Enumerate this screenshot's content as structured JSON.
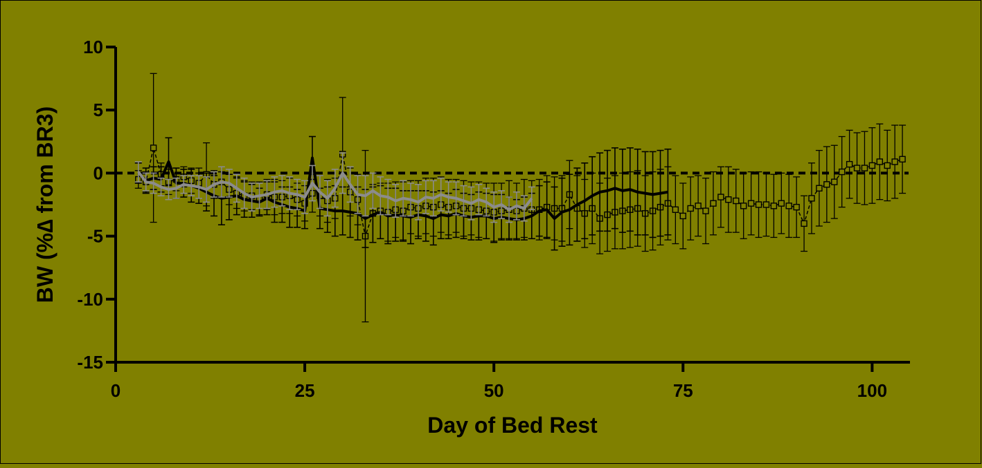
{
  "chart_data": {
    "type": "line",
    "xlabel": "Day of Bed Rest",
    "ylabel": "BW (%∆ from BR3)",
    "xlim": [
      0,
      105
    ],
    "ylim": [
      -15,
      10
    ],
    "x_ticks": [
      "0",
      "25",
      "50",
      "75",
      "100"
    ],
    "y_ticks": [
      "10",
      "5",
      "0",
      "-5",
      "-10",
      "-15"
    ],
    "grid": false,
    "legend": "none",
    "reference_line": {
      "y": 0,
      "style": "dashed"
    },
    "colors": {
      "background": "#808000",
      "series_black": "#000000",
      "series_gray": "#8c8c8c",
      "series_squares": "#000000"
    },
    "series": [
      {
        "x": [
          3,
          4,
          5,
          6,
          7,
          8,
          9,
          10,
          11,
          12,
          13,
          14,
          15,
          16,
          17,
          18,
          19,
          20,
          21,
          22,
          23,
          24,
          25,
          26,
          27,
          28,
          29,
          30,
          31,
          32,
          33,
          34,
          35,
          36,
          37,
          38,
          39,
          40,
          41,
          42,
          43,
          44,
          45,
          46,
          47,
          48,
          49,
          50,
          51,
          52,
          53,
          54,
          55,
          56,
          57,
          58,
          59,
          60,
          61,
          62,
          63,
          64,
          65,
          66,
          67,
          68,
          69,
          70,
          71,
          72,
          73
        ],
        "y": [
          0.0,
          -0.6,
          -0.4,
          -0.5,
          0.9,
          -0.8,
          -0.8,
          -1.0,
          -1.2,
          -1.5,
          -1.8,
          -2.0,
          -1.9,
          -1.8,
          -2.1,
          -2.2,
          -2.3,
          -2.0,
          -2.3,
          -2.5,
          -2.7,
          -2.8,
          -3.0,
          1.2,
          -2.8,
          -2.9,
          -3.0,
          -3.0,
          -3.1,
          -3.2,
          -3.6,
          -3.3,
          -3.1,
          -3.4,
          -3.3,
          -3.4,
          -3.5,
          -3.3,
          -3.4,
          -3.6,
          -3.3,
          -3.4,
          -3.2,
          -3.4,
          -3.5,
          -3.4,
          -3.4,
          -3.6,
          -3.5,
          -3.6,
          -3.7,
          -3.6,
          -3.4,
          -3.0,
          -2.9,
          -3.6,
          -3.1,
          -2.9,
          -2.5,
          -2.2,
          -1.8,
          -1.5,
          -1.4,
          -1.2,
          -1.4,
          -1.3,
          -1.5,
          -1.6,
          -1.7,
          -1.6,
          -1.5
        ],
        "err": [
          0.8,
          1.0,
          0.9,
          1.0,
          1.9,
          1.2,
          1.1,
          1.3,
          1.2,
          1.5,
          1.6,
          2.1,
          1.8,
          1.5,
          1.4,
          1.3,
          1.1,
          1.3,
          1.6,
          1.4,
          1.6,
          1.5,
          1.4,
          1.7,
          1.6,
          1.8,
          2.0,
          1.9,
          2.0,
          2.1,
          2.3,
          2.2,
          2.1,
          2.2,
          2.1,
          2.0,
          2.1,
          1.9,
          2.0,
          2.1,
          1.9,
          1.8,
          1.9,
          1.8,
          1.8,
          1.9,
          1.8,
          1.9,
          1.8,
          1.7,
          1.6,
          1.7,
          1.8,
          2.0,
          2.2,
          2.5,
          2.7,
          2.8,
          2.9,
          3.0,
          3.1,
          3.1,
          3.2,
          3.2,
          3.3,
          3.3,
          3.4,
          3.3,
          3.4,
          3.4,
          3.4
        ]
      },
      {
        "x": [
          3,
          4,
          5,
          6,
          7,
          8,
          9,
          10,
          11,
          12,
          13,
          14,
          15,
          16,
          17,
          18,
          19,
          20,
          21,
          22,
          23,
          24,
          25,
          26,
          27,
          28,
          29,
          30,
          31,
          32,
          33,
          34,
          35,
          36,
          37,
          38,
          39,
          40,
          41,
          42,
          43,
          44,
          45,
          46,
          47,
          48,
          49,
          50,
          51,
          52,
          53,
          54,
          55
        ],
        "y": [
          0.1,
          -0.7,
          -0.8,
          -1.1,
          -1.3,
          -1.2,
          -0.9,
          -1.0,
          -1.1,
          -1.3,
          -0.9,
          -0.7,
          -0.8,
          -1.2,
          -1.6,
          -1.9,
          -1.8,
          -1.7,
          -1.5,
          -1.4,
          -1.6,
          -1.7,
          -1.9,
          -0.8,
          -1.5,
          -2.0,
          -1.2,
          0.0,
          -0.9,
          -1.7,
          -1.8,
          -1.4,
          -1.8,
          -1.9,
          -2.2,
          -2.0,
          -2.1,
          -2.3,
          -1.9,
          -2.0,
          -1.7,
          -1.9,
          -2.0,
          -2.2,
          -2.4,
          -2.1,
          -2.3,
          -2.7,
          -2.5,
          -2.9,
          -2.6,
          -2.8,
          -2.0
        ],
        "err": [
          0.8,
          0.7,
          0.8,
          0.7,
          0.8,
          0.8,
          0.7,
          0.8,
          0.9,
          1.0,
          1.0,
          1.2,
          1.1,
          1.1,
          1.2,
          1.1,
          1.0,
          1.1,
          1.2,
          1.2,
          1.3,
          1.2,
          1.3,
          1.4,
          1.3,
          1.4,
          1.5,
          1.6,
          1.4,
          1.5,
          1.6,
          1.4,
          1.5,
          1.4,
          1.3,
          1.4,
          1.3,
          1.4,
          1.3,
          1.4,
          1.3,
          1.2,
          1.3,
          1.2,
          1.3,
          1.2,
          1.1,
          1.2,
          1.1,
          1.0,
          1.1,
          1.0,
          0.9
        ]
      },
      {
        "x": [
          3,
          4,
          5,
          6,
          7,
          8,
          9,
          10,
          11,
          12,
          13,
          14,
          15,
          16,
          17,
          18,
          19,
          20,
          21,
          22,
          23,
          24,
          25,
          26,
          27,
          28,
          29,
          30,
          31,
          32,
          33,
          34,
          35,
          36,
          37,
          38,
          39,
          40,
          41,
          42,
          43,
          44,
          45,
          46,
          47,
          48,
          49,
          50,
          51,
          52,
          53,
          54,
          55,
          56,
          57,
          58,
          59,
          60,
          61,
          62,
          63,
          64,
          65,
          66,
          67,
          68,
          69,
          70,
          71,
          72,
          73,
          74,
          75,
          76,
          77,
          78,
          79,
          80,
          81,
          82,
          83,
          84,
          85,
          86,
          87,
          88,
          89,
          90,
          91,
          92,
          93,
          94,
          95,
          96,
          97,
          98,
          99,
          100,
          101,
          102,
          103,
          104
        ],
        "y": [
          -0.5,
          -0.7,
          2.0,
          -0.1,
          -0.7,
          -0.5,
          -0.3,
          -0.6,
          -0.8,
          -0.1,
          -0.9,
          -0.7,
          -1.3,
          -1.6,
          -1.8,
          -1.8,
          -2.0,
          -1.7,
          -1.9,
          -1.9,
          -1.8,
          -2.1,
          -2.4,
          -1.6,
          -1.8,
          -2.2,
          -2.0,
          1.5,
          -1.5,
          -2.1,
          -5.0,
          -3.2,
          -3.0,
          -3.1,
          -2.9,
          -3.0,
          -2.7,
          -2.8,
          -2.6,
          -2.7,
          -2.5,
          -2.7,
          -2.6,
          -2.8,
          -2.8,
          -2.9,
          -3.0,
          -3.1,
          -3.0,
          -2.9,
          -3.0,
          -2.8,
          -2.9,
          -2.9,
          -2.7,
          -2.8,
          -2.8,
          -1.7,
          -2.8,
          -3.2,
          -2.8,
          -3.6,
          -3.3,
          -3.1,
          -3.0,
          -2.9,
          -2.8,
          -3.2,
          -3.0,
          -2.7,
          -2.4,
          -2.9,
          -3.4,
          -2.8,
          -2.6,
          -3.0,
          -2.4,
          -1.9,
          -2.1,
          -2.2,
          -2.6,
          -2.4,
          -2.5,
          -2.5,
          -2.6,
          -2.4,
          -2.6,
          -2.7,
          -4.0,
          -2.0,
          -1.2,
          -0.9,
          -0.7,
          0.1,
          0.7,
          0.4,
          0.4,
          0.6,
          0.9,
          0.6,
          0.9,
          1.1
        ],
        "err": [
          0.7,
          0.8,
          5.9,
          0.9,
          1.0,
          0.9,
          0.8,
          1.0,
          1.2,
          2.5,
          1.1,
          1.2,
          1.2,
          1.2,
          1.2,
          1.1,
          1.3,
          1.2,
          1.4,
          1.3,
          1.4,
          1.3,
          1.4,
          1.5,
          1.6,
          1.7,
          1.6,
          4.5,
          1.9,
          2.0,
          6.8,
          2.3,
          2.2,
          2.3,
          2.2,
          2.3,
          2.1,
          2.2,
          2.2,
          2.3,
          2.2,
          2.2,
          2.1,
          2.2,
          2.1,
          2.2,
          2.2,
          2.3,
          2.2,
          2.3,
          2.2,
          2.3,
          2.3,
          2.4,
          2.5,
          2.5,
          2.6,
          2.7,
          2.6,
          2.7,
          2.8,
          2.8,
          2.9,
          2.9,
          3.0,
          3.0,
          3.0,
          3.0,
          3.1,
          3.0,
          2.9,
          2.7,
          2.6,
          2.5,
          2.4,
          2.6,
          2.5,
          2.4,
          2.6,
          2.5,
          2.6,
          2.5,
          2.6,
          2.5,
          2.5,
          2.4,
          2.5,
          2.4,
          2.2,
          2.8,
          3.0,
          3.0,
          2.9,
          2.8,
          2.7,
          2.8,
          2.9,
          3.0,
          3.0,
          2.8,
          2.9,
          2.7
        ]
      }
    ]
  }
}
